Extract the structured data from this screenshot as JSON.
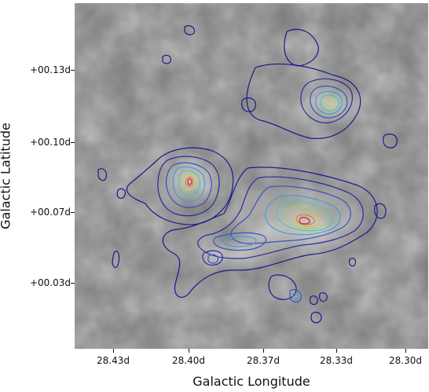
{
  "figure": {
    "xlabel": "Galactic Longitude",
    "ylabel": "Galactic Latitude"
  },
  "x_ticks": [
    "28.43d",
    "28.40d",
    "28.37d",
    "28.33d",
    "28.30d"
  ],
  "y_ticks": [
    "+00.13d",
    "+00.10d",
    "+00.07d",
    "+00.03d"
  ],
  "colors": {
    "background_gray": "#7a7a7a",
    "contour_low": "#1a1a8c",
    "contour_mid": "#40c0c0",
    "contour_high": "#d02020"
  }
}
